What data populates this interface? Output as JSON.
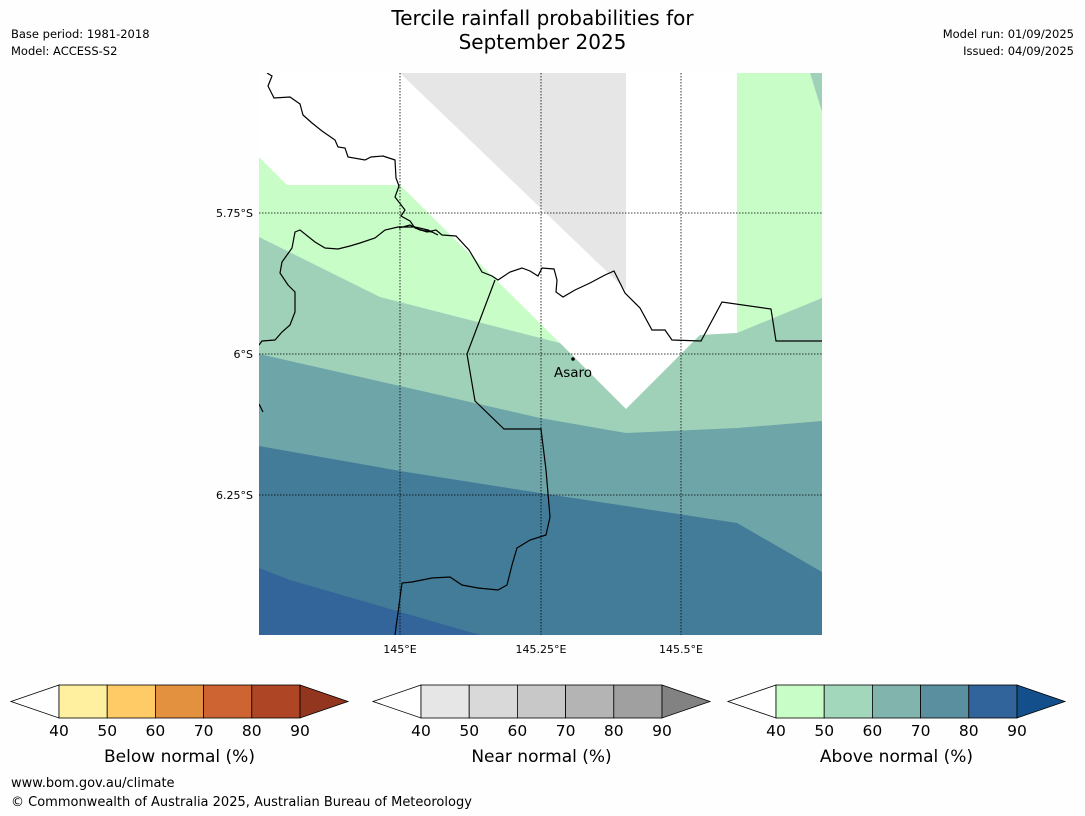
{
  "title_line1": "Tercile rainfall probabilities for",
  "title_line2": "September 2025",
  "base_period": "Base period: 1981-2018",
  "model": "Model: ACCESS-S2",
  "model_run": "Model run: 01/09/2025",
  "issued": "Issued: 04/09/2025",
  "lat_labels": [
    "5.75°S",
    "6°S",
    "6.25°S"
  ],
  "lon_labels": [
    "145°E",
    "145.25°E",
    "145.5°E"
  ],
  "place": "Asaro",
  "colorbars": [
    {
      "title": "Below normal (%)",
      "ticks": [
        "40",
        "50",
        "60",
        "70",
        "80",
        "90"
      ],
      "colors": [
        "#fff0a0",
        "#ffcb66",
        "#e3903f",
        "#cd6432",
        "#ae4626"
      ],
      "under_color": "#ffffff",
      "over_color": "#923620"
    },
    {
      "title": "Near normal (%)",
      "ticks": [
        "40",
        "50",
        "60",
        "70",
        "80",
        "90"
      ],
      "colors": [
        "#e6e6e6",
        "#d9d9d9",
        "#c8c8c8",
        "#b4b4b4",
        "#a0a0a0"
      ],
      "under_color": "#ffffff",
      "over_color": "#828282"
    },
    {
      "title": "Above normal (%)",
      "ticks": [
        "40",
        "50",
        "60",
        "70",
        "80",
        "90"
      ],
      "colors": [
        "#c8fdc8",
        "#a2d7bc",
        "#80b4ac",
        "#5a8fa0",
        "#31649a"
      ],
      "under_color": "#ffffff",
      "over_color": "#134f8b"
    }
  ],
  "footer_url": "www.bom.gov.au/climate",
  "footer_copyright": "© Commonwealth of Australia 2025, Australian Bureau of Meteorology"
}
